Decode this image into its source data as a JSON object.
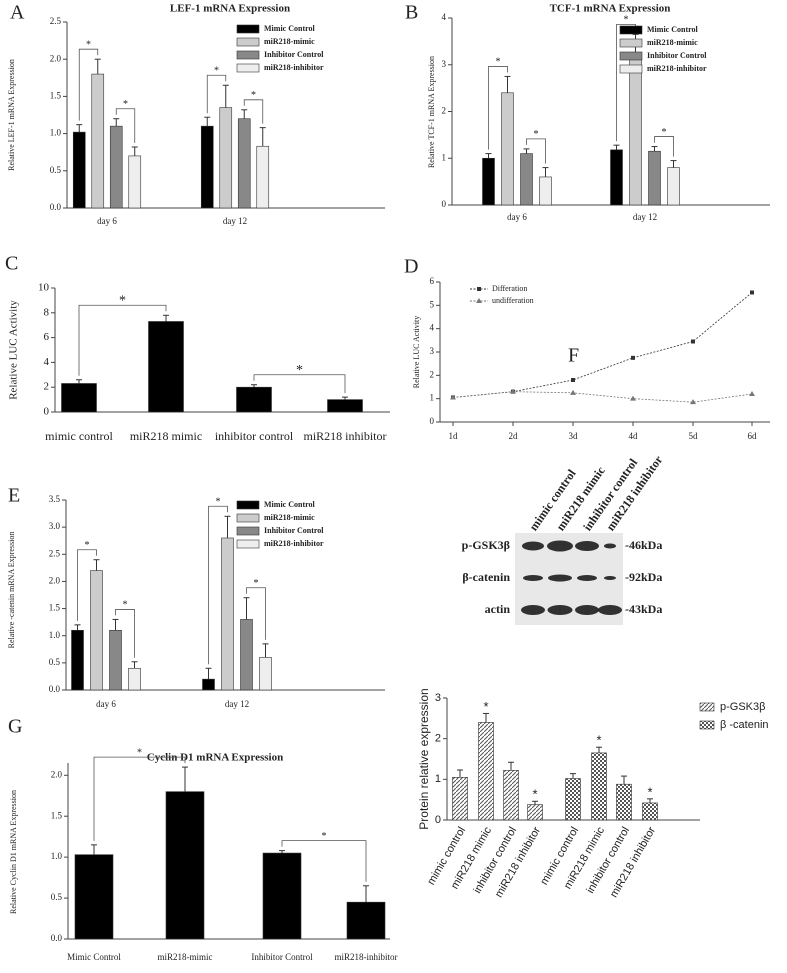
{
  "chart_data": [
    {
      "type": "bar",
      "panel": "A",
      "title": "LEF-1 mRNA Expression",
      "y_label": "Relative LEF-1 mRNA Expression",
      "categories": [
        "day 6",
        "day 12"
      ],
      "series": [
        {
          "name": "Mimic Control",
          "color": "#000000",
          "values": [
            1.02,
            1.1
          ],
          "errors": [
            0.1,
            0.12
          ]
        },
        {
          "name": "miR218-mimic",
          "color": "#cccccc",
          "values": [
            1.8,
            1.35
          ],
          "errors": [
            0.2,
            0.3
          ]
        },
        {
          "name": "Inhibitor Control",
          "color": "#888888",
          "values": [
            1.1,
            1.2
          ],
          "errors": [
            0.1,
            0.12
          ]
        },
        {
          "name": "miR218-inhibitor",
          "color": "#eeeeee",
          "values": [
            0.7,
            0.83
          ],
          "errors": [
            0.12,
            0.25
          ]
        }
      ],
      "ylim": [
        0,
        2.5
      ],
      "yticks": [
        {
          "value": 0,
          "label": "0.0"
        },
        0.5,
        {
          "value": 1,
          "label": "1.0"
        },
        1.5,
        {
          "value": 2,
          "label": "2.0"
        },
        2.5
      ],
      "annotations": [
        "*",
        "*",
        "*",
        "*"
      ]
    },
    {
      "type": "bar",
      "panel": "B",
      "title": "TCF-1 mRNA Expression",
      "y_label": "Relative TCF-1 mRNA Expression",
      "categories": [
        "day 6",
        "day 12"
      ],
      "series": [
        {
          "name": "Mimic Control",
          "color": "#000000",
          "values": [
            1.0,
            1.18
          ],
          "errors": [
            0.1,
            0.1
          ]
        },
        {
          "name": "miR218-mimic",
          "color": "#cccccc",
          "values": [
            2.4,
            3.2
          ],
          "errors": [
            0.35,
            0.45
          ]
        },
        {
          "name": "Inhibitor Control",
          "color": "#888888",
          "values": [
            1.1,
            1.15
          ],
          "errors": [
            0.1,
            0.1
          ]
        },
        {
          "name": "miR218-inhibitor",
          "color": "#eeeeee",
          "values": [
            0.6,
            0.8
          ],
          "errors": [
            0.2,
            0.15
          ]
        }
      ],
      "ylim": [
        0,
        4
      ],
      "yticks": [
        0,
        1,
        2,
        3,
        4
      ],
      "annotations": [
        "*",
        "*",
        "*",
        "*"
      ]
    },
    {
      "type": "bar",
      "panel": "C",
      "y_label": "Relative LUC Activity",
      "categories": [
        "mimic control",
        "miR218 mimic",
        "inhibitor control",
        "miR218 inhibitor"
      ],
      "color": "#000000",
      "values": [
        2.3,
        7.3,
        2.0,
        1.0
      ],
      "errors": [
        0.3,
        0.5,
        0.2,
        0.2
      ],
      "ylim": [
        0,
        10
      ],
      "yticks": [
        0,
        2,
        4,
        6,
        8,
        10
      ],
      "annotations": [
        "*",
        "*"
      ]
    },
    {
      "type": "line",
      "panel": "D",
      "y_label": "Relative LUC Activity",
      "categories": [
        "1d",
        "2d",
        "3d",
        "4d",
        "5d",
        "6d"
      ],
      "series": [
        {
          "name": "Differation",
          "color": "#333333",
          "marker": "square",
          "values": [
            1.05,
            1.3,
            1.8,
            2.75,
            3.45,
            5.55
          ]
        },
        {
          "name": "undifferation",
          "color": "#777777",
          "marker": "triangle",
          "values": [
            1.05,
            1.3,
            1.25,
            1.0,
            0.85,
            1.2
          ]
        }
      ],
      "ylim": [
        0,
        6
      ],
      "yticks": [
        0,
        1,
        2,
        3,
        4,
        5,
        6
      ]
    },
    {
      "type": "bar",
      "panel": "E",
      "y_label": "Relative -catenin mRNA Expression",
      "categories": [
        "day 6",
        "day 12"
      ],
      "series": [
        {
          "name": "Mimic Control",
          "color": "#000000",
          "values": [
            1.1,
            0.2
          ],
          "errors": [
            0.1,
            0.2
          ]
        },
        {
          "name": "miR218-mimic",
          "color": "#cccccc",
          "values": [
            2.2,
            2.8
          ],
          "errors": [
            0.2,
            0.4
          ]
        },
        {
          "name": "Inhibitor Control",
          "color": "#888888",
          "values": [
            1.1,
            1.3
          ],
          "errors": [
            0.2,
            0.4
          ]
        },
        {
          "name": "miR218-inhibitor",
          "color": "#eeeeee",
          "values": [
            0.4,
            0.6
          ],
          "errors": [
            0.12,
            0.25
          ]
        }
      ],
      "ylim": [
        0,
        3.5
      ],
      "yticks": [
        {
          "value": 0,
          "label": "0.0"
        },
        0.5,
        {
          "value": 1,
          "label": "1.0"
        },
        1.5,
        {
          "value": 2,
          "label": "2.0"
        },
        2.5,
        {
          "value": 3,
          "label": "3.0"
        },
        3.5
      ],
      "annotations": [
        "*",
        "*",
        "*",
        "*"
      ]
    },
    {
      "type": "bar",
      "panel": "F",
      "y_label": "Protein relative expression",
      "categories": [
        "mimic control",
        "miR218 mimic",
        "inhibitor control",
        "miR218 inhibitor",
        "mimic control",
        "miR218 mimic",
        "inhibitor control",
        "miR218 inhibitor"
      ],
      "series": [
        {
          "name": "p-GSK3β",
          "color": "#555555",
          "hatch": "diagonal",
          "values": [
            1.05,
            2.4,
            1.22,
            0.38,
            null,
            null,
            null,
            null
          ],
          "errors": [
            0.18,
            0.22,
            0.2,
            0.08,
            null,
            null,
            null,
            null
          ]
        },
        {
          "name": "β -catenin",
          "color": "#555555",
          "hatch": "checker",
          "values": [
            null,
            null,
            null,
            null,
            1.02,
            1.65,
            0.88,
            0.42
          ],
          "errors": [
            null,
            null,
            null,
            null,
            0.12,
            0.14,
            0.2,
            0.1
          ]
        }
      ],
      "ylim": [
        0,
        3
      ],
      "yticks": [
        0,
        1,
        2,
        3
      ],
      "annotations": [
        "*",
        "*",
        "*",
        "*"
      ]
    },
    {
      "type": "bar",
      "panel": "G",
      "title": "Cyclin D1 mRNA Expression",
      "y_label": "Relative Cyclin D1 mRNA Expression",
      "categories": [
        "Mimic Control",
        "miR218-mimic",
        "Inhibitor Control",
        "miR218-inhibitor"
      ],
      "color": "#000000",
      "values": [
        1.03,
        1.8,
        1.05,
        0.45
      ],
      "errors": [
        0.12,
        0.3,
        0.03,
        0.2
      ],
      "ylim": [
        0,
        2.15
      ],
      "yticks": [
        {
          "value": 0,
          "label": "0.0"
        },
        0.5,
        {
          "value": 1,
          "label": "1.0"
        },
        1.5,
        {
          "value": 2,
          "label": "2.0"
        }
      ],
      "annotations": [
        "*",
        "*"
      ]
    }
  ],
  "blot": {
    "lanes": [
      "mimic control",
      "miR218 mimic",
      "inhibitor control",
      "miR218 inhibitor"
    ],
    "rows": [
      {
        "label": "p-GSK3β",
        "size": "-46kDa"
      },
      {
        "label": "β-catenin",
        "size": "-92kDa"
      },
      {
        "label": "actin",
        "size": "-43kDa"
      }
    ]
  }
}
